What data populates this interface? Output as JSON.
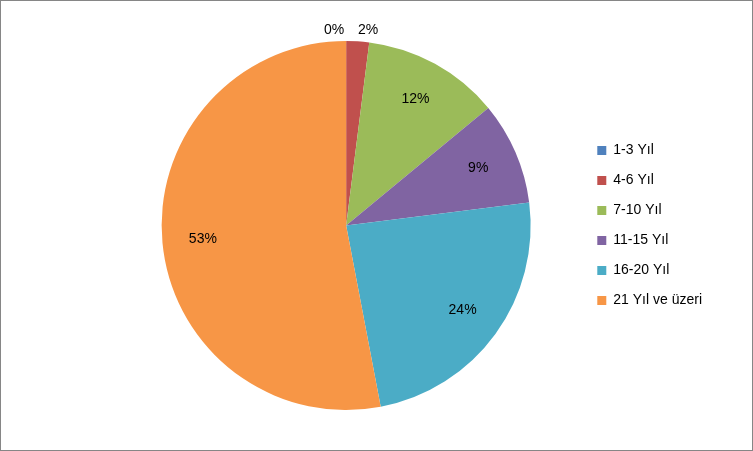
{
  "chart_data": {
    "type": "pie",
    "categories": [
      "1-3 Yıl",
      "4-6 Yıl",
      "7-10 Yıl",
      "11-15 Yıl",
      "16-20 Yıl",
      "21 Yıl ve üzeri"
    ],
    "values": [
      0,
      2,
      12,
      9,
      24,
      53
    ],
    "value_labels": [
      "0%",
      "2%",
      "12%",
      "9%",
      "24%",
      "53%"
    ],
    "colors": [
      "#4f81bd",
      "#c0504d",
      "#9bbb59",
      "#8064a2",
      "#4bacc6",
      "#f79646"
    ],
    "legend": "right",
    "data_labels": true
  }
}
